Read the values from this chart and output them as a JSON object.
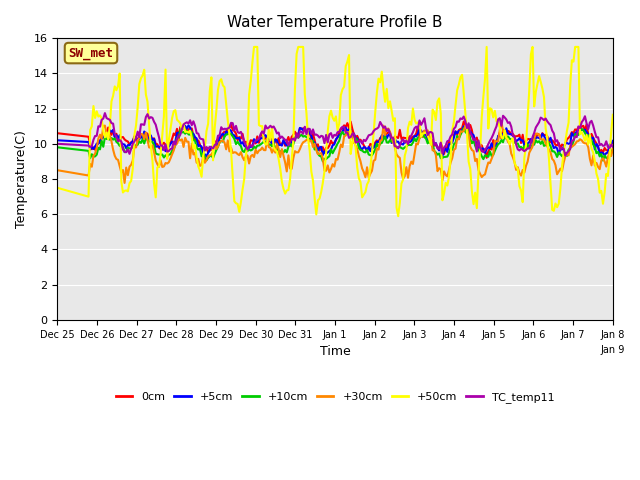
{
  "title": "Water Temperature Profile B",
  "xlabel": "Time",
  "ylabel": "Temperature(C)",
  "ylim": [
    0,
    16
  ],
  "yticks": [
    0,
    2,
    4,
    6,
    8,
    10,
    12,
    14,
    16
  ],
  "bg_color": "#e8e8e8",
  "fig_color": "#ffffff",
  "annotation_text": "SW_met",
  "annotation_facecolor": "#ffff99",
  "annotation_edgecolor": "#8B6914",
  "annotation_textcolor": "#8B0000",
  "series_names": [
    "0cm",
    "+5cm",
    "+10cm",
    "+30cm",
    "+50cm",
    "TC_temp11"
  ],
  "series_colors": [
    "#ff0000",
    "#0000ff",
    "#00cc00",
    "#ff8800",
    "#ffff00",
    "#aa00aa"
  ],
  "series_lw": [
    1.5,
    1.5,
    1.5,
    1.5,
    1.5,
    1.5
  ],
  "n_points": 340,
  "x_start": 0,
  "x_end": 14,
  "xtick_positions": [
    0,
    1,
    2,
    3,
    4,
    5,
    6,
    7,
    8,
    9,
    10,
    11,
    12,
    13,
    14
  ],
  "xtick_labels": [
    "Dec 25",
    "Dec 26",
    "Dec 27",
    "Dec 28",
    "Dec 29",
    "Dec 30",
    "Dec 31",
    "Jan 1",
    "Jan 2",
    "Jan 3",
    "Jan 4",
    "Jan 5",
    "Jan 6",
    "Jan 7",
    "Jan 8"
  ],
  "extra_label": "Jan 9"
}
